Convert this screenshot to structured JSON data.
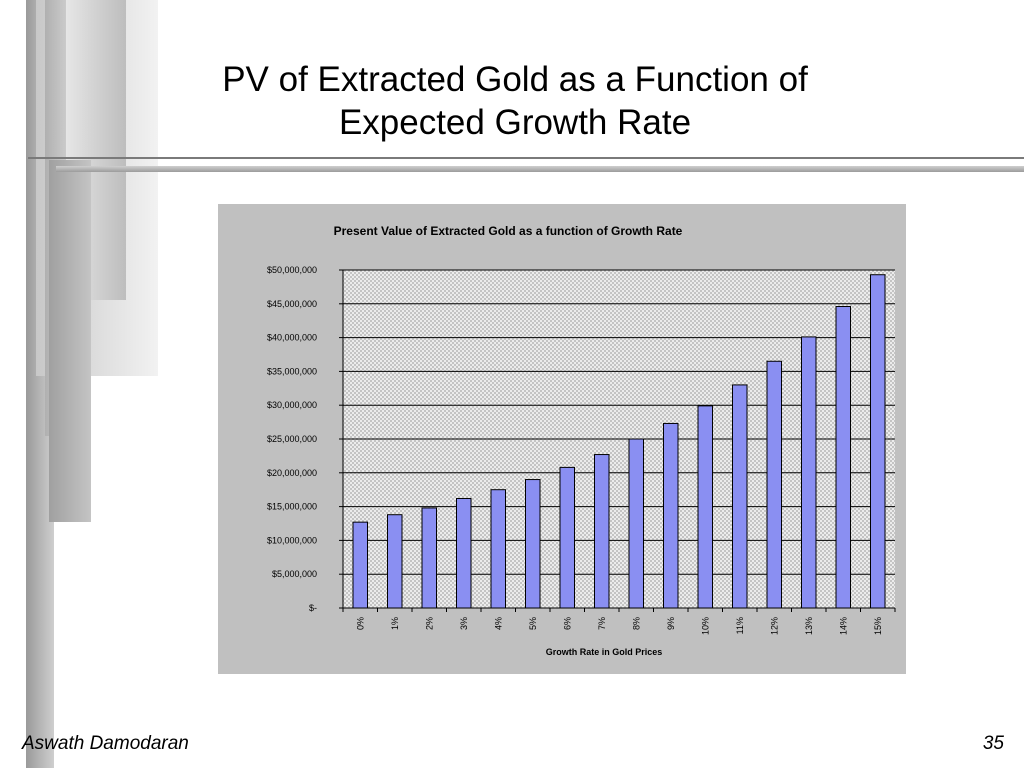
{
  "slide": {
    "title_line1": "PV of Extracted Gold as a Function of",
    "title_line2": "Expected Growth Rate",
    "footer_author": "Aswath Damodaran",
    "page_number": "35"
  },
  "colors": {
    "bar_fill": "#8a8ff2",
    "chart_background": "#c0c0c0",
    "plot_pattern_dark": "#c4c4c4",
    "plot_pattern_light": "#ececec",
    "deco_gray": "#a9a9a9"
  },
  "chart_data": {
    "type": "bar",
    "title": "Present Value of Extracted Gold as a function of Growth Rate",
    "xlabel": "Growth Rate in Gold Prices",
    "ylabel": "",
    "categories": [
      "0%",
      "1%",
      "2%",
      "3%",
      "4%",
      "5%",
      "6%",
      "7%",
      "8%",
      "9%",
      "10%",
      "11%",
      "12%",
      "13%",
      "14%",
      "15%"
    ],
    "values": [
      12700000,
      13800000,
      14800000,
      16200000,
      17500000,
      19000000,
      20800000,
      22700000,
      25000000,
      27300000,
      29900000,
      33000000,
      36500000,
      40100000,
      44600000,
      49300000
    ],
    "ylim": [
      0,
      50000000
    ],
    "yticks": [
      0,
      5000000,
      10000000,
      15000000,
      20000000,
      25000000,
      30000000,
      35000000,
      40000000,
      45000000,
      50000000
    ],
    "ytick_labels": [
      "$-",
      "$5,000,000",
      "$10,000,000",
      "$15,000,000",
      "$20,000,000",
      "$25,000,000",
      "$30,000,000",
      "$35,000,000",
      "$40,000,000",
      "$45,000,000",
      "$50,000,000"
    ],
    "grid": true,
    "legend": "none"
  }
}
